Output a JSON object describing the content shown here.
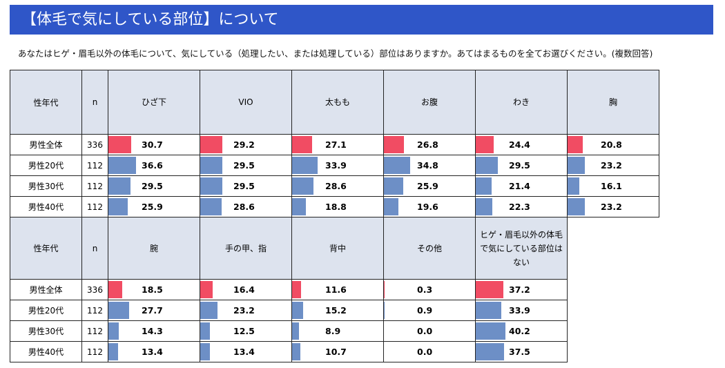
{
  "header": {
    "title": "【体毛で気にしている部位】について"
  },
  "question": "あなたはヒゲ・眉毛以外の体毛について、気にしている（処理したい、または処理している）部位はありますか。あてはまるものを全てお選びください。(複数回答)",
  "colors": {
    "header_bg": "#2f56c8",
    "header_cell_bg": "#dde3ee",
    "total_bar": "#f14c63",
    "age_bar": "#6d8fc6"
  },
  "chart_data": {
    "type": "table",
    "col_segment": "性年代",
    "col_n": "n",
    "rows": [
      {
        "segment": "男性全体",
        "n": 336
      },
      {
        "segment": "男性20代",
        "n": 112
      },
      {
        "segment": "男性30代",
        "n": 112
      },
      {
        "segment": "男性40代",
        "n": 112
      }
    ],
    "tables": [
      {
        "columns": [
          "ひざ下",
          "VIO",
          "太もも",
          "お腹",
          "わき",
          "胸"
        ],
        "values": [
          [
            "30.7",
            "29.2",
            "27.1",
            "26.8",
            "24.4",
            "20.8"
          ],
          [
            "36.6",
            "29.5",
            "33.9",
            "34.8",
            "29.5",
            "23.2"
          ],
          [
            "29.5",
            "29.5",
            "28.6",
            "25.9",
            "21.4",
            "16.1"
          ],
          [
            "25.9",
            "28.6",
            "18.8",
            "19.6",
            "22.3",
            "23.2"
          ]
        ]
      },
      {
        "columns": [
          "腕",
          "手の甲、指",
          "背中",
          "その他",
          "ヒゲ・眉毛以外の体毛で気にしている部位はない"
        ],
        "values": [
          [
            "18.5",
            "16.4",
            "11.6",
            "0.3",
            "37.2"
          ],
          [
            "27.7",
            "23.2",
            "15.2",
            "0.9",
            "33.9"
          ],
          [
            "14.3",
            "12.5",
            "8.9",
            "0.0",
            "40.2"
          ],
          [
            "13.4",
            "13.4",
            "10.7",
            "0.0",
            "37.5"
          ]
        ]
      }
    ]
  }
}
